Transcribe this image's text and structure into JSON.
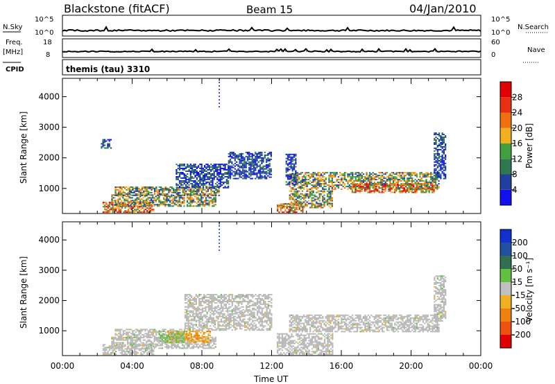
{
  "header": {
    "station": "Blackstone (fitACF)",
    "beam": "Beam 15",
    "date": "04/Jan/2010"
  },
  "aux_panels": {
    "nsky_label": "N.Sky",
    "nsky_ticks": [
      "10^5",
      "10^0"
    ],
    "nsearch_label": "N.Search",
    "nsearch_ticks": [
      "10^5",
      "10^0"
    ],
    "freq_label": "Freq.",
    "freq_unit": "[MHz]",
    "freq_ticks": [
      "18",
      "8"
    ],
    "nave_label": "Nave",
    "nave_ticks": [
      "60",
      "0"
    ],
    "cpid_label": "CPID",
    "cpid_text": "themis (tau) 3310"
  },
  "colors": {
    "power_scale": [
      "#1010f0",
      "#2040a0",
      "#307850",
      "#40a040",
      "#f0b020",
      "#f07010",
      "#e83010",
      "#e00000"
    ],
    "velocity_scale": [
      "#1030d0",
      "#2050a0",
      "#307050",
      "#60c040",
      "#c0c0c0",
      "#f0b020",
      "#f08010",
      "#f05010",
      "#e00000"
    ],
    "ground_scatter": "#b8b8b8"
  },
  "chart_data": [
    {
      "type": "heatmap",
      "xlabel": "Time UT",
      "ylabel": "Slant Range [km]",
      "x_ticks": [
        "00:00",
        "04:00",
        "08:00",
        "12:00",
        "16:00",
        "20:00",
        "00:00"
      ],
      "xlim": [
        0,
        24
      ],
      "ylim": [
        180,
        4600
      ],
      "y_ticks": [
        1000,
        2000,
        3000,
        4000
      ],
      "colorbar": {
        "label": "Power [dB]",
        "ticks": [
          "4",
          "8",
          "12",
          "16",
          "20",
          "24",
          "28"
        ]
      },
      "scatter_regions": [
        {
          "t0": 2.3,
          "t1": 5.2,
          "r0": 200,
          "r1": 550,
          "value": "high"
        },
        {
          "t0": 2.8,
          "t1": 8.8,
          "r0": 400,
          "r1": 800,
          "value": "mid"
        },
        {
          "t0": 3.0,
          "t1": 9.0,
          "r0": 750,
          "r1": 1050,
          "value": "mid"
        },
        {
          "t0": 6.5,
          "t1": 9.5,
          "r0": 1000,
          "r1": 1800,
          "value": "low"
        },
        {
          "t0": 9.5,
          "t1": 12.0,
          "r0": 1300,
          "r1": 2200,
          "value": "low"
        },
        {
          "t0": 12.3,
          "t1": 13.8,
          "r0": 200,
          "r1": 500,
          "value": "high"
        },
        {
          "t0": 13.0,
          "t1": 15.5,
          "r0": 350,
          "r1": 900,
          "value": "mid"
        },
        {
          "t0": 13.0,
          "t1": 21.6,
          "r0": 950,
          "r1": 1500,
          "value": "mid"
        },
        {
          "t0": 16.5,
          "t1": 21.3,
          "r0": 850,
          "r1": 1150,
          "value": "high"
        },
        {
          "t0": 21.3,
          "t1": 22.0,
          "r0": 1300,
          "r1": 2800,
          "value": "low"
        },
        {
          "t0": 12.8,
          "t1": 13.4,
          "r0": 1100,
          "r1": 2100,
          "value": "low"
        },
        {
          "t0": 2.2,
          "t1": 2.8,
          "r0": 2300,
          "r1": 2600,
          "value": "low"
        }
      ]
    },
    {
      "type": "heatmap",
      "xlabel": "Time UT",
      "ylabel": "Slant Range [km]",
      "x_ticks": [
        "00:00",
        "04:00",
        "08:00",
        "12:00",
        "16:00",
        "20:00",
        "00:00"
      ],
      "xlim": [
        0,
        24
      ],
      "ylim": [
        180,
        4600
      ],
      "y_ticks": [
        1000,
        2000,
        3000,
        4000
      ],
      "colorbar": {
        "label": "Velocity [m s⁻¹]",
        "ticks": [
          "200",
          "100",
          "50",
          "15",
          "-15",
          "-50",
          "-100",
          "-200"
        ]
      },
      "scatter_regions": [
        {
          "t0": 2.3,
          "t1": 5.2,
          "r0": 200,
          "r1": 550,
          "value": "ground"
        },
        {
          "t0": 2.8,
          "t1": 8.8,
          "r0": 400,
          "r1": 800,
          "value": "ground"
        },
        {
          "t0": 3.0,
          "t1": 7.0,
          "r0": 750,
          "r1": 1050,
          "value": "ground"
        },
        {
          "t0": 6.0,
          "t1": 8.5,
          "r0": 600,
          "r1": 1000,
          "value": "orange"
        },
        {
          "t0": 5.5,
          "t1": 7.0,
          "r0": 600,
          "r1": 1000,
          "value": "green"
        },
        {
          "t0": 7.0,
          "t1": 12.0,
          "r0": 1000,
          "r1": 2200,
          "value": "ground"
        },
        {
          "t0": 12.3,
          "t1": 15.5,
          "r0": 200,
          "r1": 900,
          "value": "ground"
        },
        {
          "t0": 13.0,
          "t1": 21.6,
          "r0": 950,
          "r1": 1500,
          "value": "ground"
        },
        {
          "t0": 21.3,
          "t1": 22.0,
          "r0": 1300,
          "r1": 2800,
          "value": "ground"
        }
      ]
    }
  ]
}
